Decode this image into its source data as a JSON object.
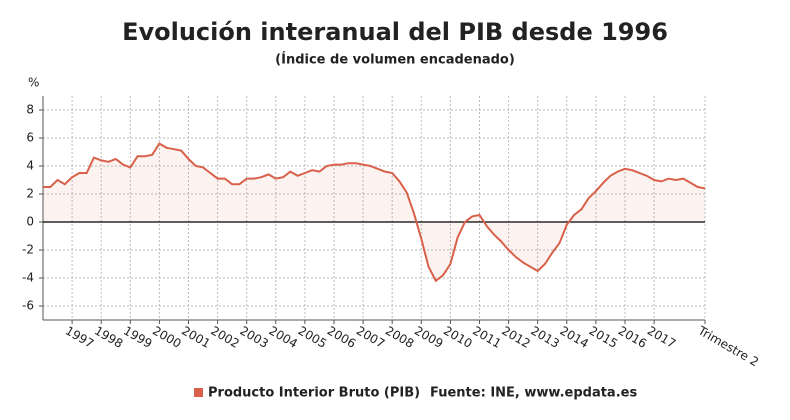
{
  "chart_data": {
    "type": "line",
    "title": "Evolución interanual del PIB desde 1996",
    "subtitle": "(Índice de volumen encadenado)",
    "y_label": "%",
    "source": "Fuente: INE, www.epdata.es",
    "categories": [
      null,
      null,
      null,
      null,
      "1997",
      null,
      null,
      null,
      "1998",
      null,
      null,
      null,
      "1999",
      null,
      null,
      null,
      "2000",
      null,
      null,
      null,
      "2001",
      null,
      null,
      null,
      "2002",
      null,
      null,
      null,
      "2003",
      null,
      null,
      null,
      "2004",
      null,
      null,
      null,
      "2005",
      null,
      null,
      null,
      "2006",
      null,
      null,
      null,
      "2007",
      null,
      null,
      null,
      "2008",
      null,
      null,
      null,
      "2009",
      null,
      null,
      null,
      "2010",
      null,
      null,
      null,
      "2011",
      null,
      null,
      null,
      "2012",
      null,
      null,
      null,
      "2013",
      null,
      null,
      null,
      "2014",
      null,
      null,
      null,
      "2015",
      null,
      null,
      null,
      "2016",
      null,
      null,
      null,
      "2017",
      null,
      null,
      null,
      null,
      null,
      null,
      "Trimestre 2"
    ],
    "series": [
      {
        "name": "Producto Interior Bruto (PIB)",
        "color": "#d9604a",
        "values": [
          2.5,
          2.5,
          3.0,
          2.7,
          3.2,
          3.5,
          3.5,
          4.6,
          4.4,
          4.3,
          4.5,
          4.1,
          3.9,
          4.7,
          4.7,
          4.8,
          5.6,
          5.3,
          5.2,
          5.1,
          4.5,
          4.0,
          3.9,
          3.5,
          3.1,
          3.1,
          2.7,
          2.7,
          3.1,
          3.1,
          3.2,
          3.4,
          3.1,
          3.2,
          3.6,
          3.3,
          3.5,
          3.7,
          3.6,
          4.0,
          4.1,
          4.1,
          4.2,
          4.2,
          4.1,
          4.0,
          3.8,
          3.6,
          3.5,
          2.9,
          2.1,
          0.6,
          -1.2,
          -3.2,
          -4.2,
          -3.8,
          -3.0,
          -1.1,
          0.0,
          0.4,
          0.5,
          -0.3,
          -0.9,
          -1.4,
          -2.0,
          -2.5,
          -2.9,
          -3.2,
          -3.5,
          -3.0,
          -2.2,
          -1.5,
          -0.2,
          0.5,
          0.9,
          1.7,
          2.2,
          2.8,
          3.3,
          3.6,
          3.8,
          3.7,
          3.5,
          3.3,
          3.0,
          2.9,
          3.1,
          3.0,
          3.1,
          2.8,
          2.5,
          2.4
        ]
      }
    ],
    "ylim": [
      -7,
      9
    ],
    "yticks": [
      -6,
      -4,
      -2,
      0,
      2,
      4,
      6,
      8
    ],
    "grid": true
  }
}
